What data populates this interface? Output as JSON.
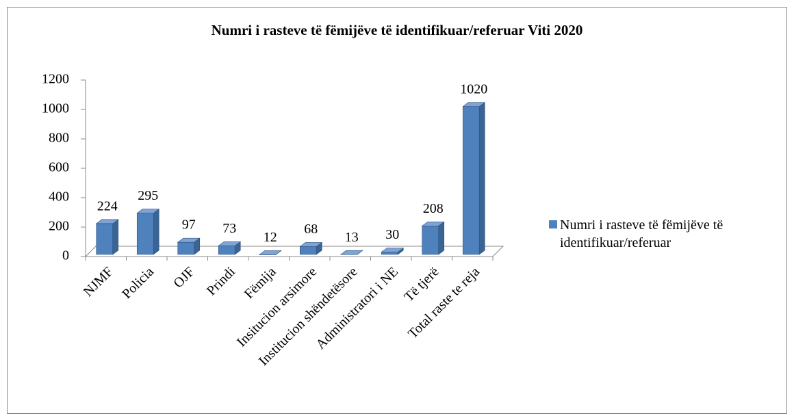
{
  "chart_data": {
    "type": "bar3d",
    "title": "Numri i rasteve të fëmijëve të identifikuar/referuar Viti 2020",
    "categories": [
      "NJMF",
      "Policia",
      "OJF",
      "Prindi",
      "Fëmija",
      "Insitucion arsimore",
      "Institucion shëndetësore",
      "Administratori i NE",
      "Të tjerë",
      "Total raste te reja"
    ],
    "series": [
      {
        "name": "Numri i rasteve të fëmijëve të identifikuar/referuar",
        "color": "#4f81bd",
        "values": [
          224,
          295,
          97,
          73,
          12,
          68,
          13,
          30,
          208,
          1020
        ]
      }
    ],
    "ylim": [
      0,
      1200
    ],
    "yticks": [
      0,
      200,
      400,
      600,
      800,
      1000,
      1200
    ],
    "legend": "right",
    "data_labels": true
  }
}
